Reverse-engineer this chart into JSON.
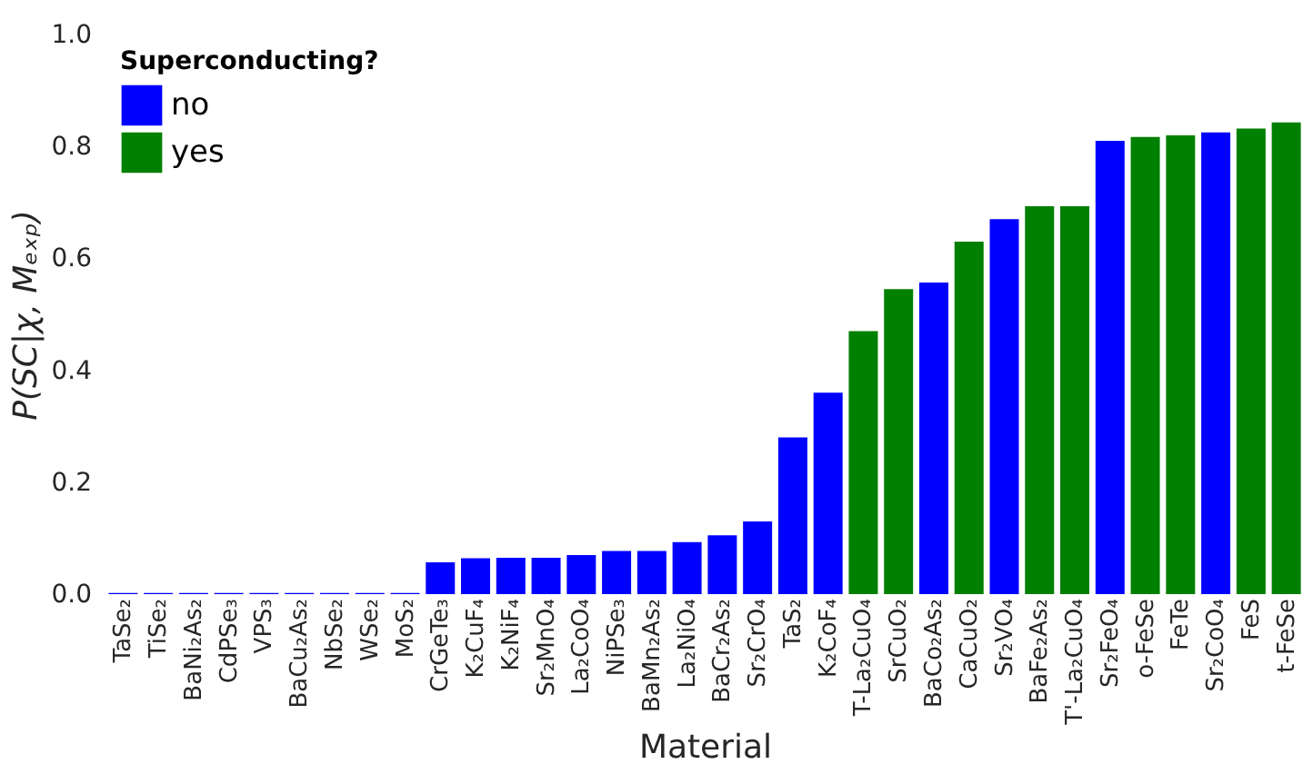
{
  "chart_data": {
    "type": "bar",
    "xlabel": "Material",
    "ylabel": "P(SC|χ, Mₑₓₚ)",
    "legend_title": "Superconducting?",
    "legend": "top left",
    "grid": false,
    "categories": [
      "TaSe₂",
      "TiSe₂",
      "BaNi₂As₂",
      "CdPSe₃",
      "VPS₃",
      "BaCu₂As₂",
      "NbSe₂",
      "WSe₂",
      "MoS₂",
      "CrGeTe₃",
      "K₂CuF₄",
      "K₂NiF₄",
      "Sr₂MnO₄",
      "La₂CoO₄",
      "NiPSe₃",
      "BaMn₂As₂",
      "La₂NiO₄",
      "BaCr₂As₂",
      "Sr₂CrO₄",
      "TaS₂",
      "K₂CoF₄",
      "T-La₂CuO₄",
      "SrCuO₂",
      "BaCo₂As₂",
      "CaCuO₂",
      "Sr₂VO₄",
      "BaFe₂As₂",
      "T'-La₂CuO₄",
      "Sr₂FeO₄",
      "o-FeSe",
      "FeTe",
      "Sr₂CoO₄",
      "FeS",
      "t-FeSe"
    ],
    "series": [
      {
        "name": "no",
        "color": "#0000ff",
        "values": [
          0.002,
          0.002,
          0.002,
          0.002,
          0.002,
          0.002,
          0.002,
          0.002,
          0.002,
          0.057,
          0.064,
          0.065,
          0.065,
          0.07,
          0.077,
          0.077,
          0.093,
          0.105,
          0.13,
          0.28,
          0.36,
          null,
          null,
          0.557,
          null,
          0.67,
          null,
          null,
          0.81,
          null,
          null,
          0.825,
          null,
          null
        ]
      },
      {
        "name": "yes",
        "color": "#008000",
        "values": [
          null,
          null,
          null,
          null,
          null,
          null,
          null,
          null,
          null,
          null,
          null,
          null,
          null,
          null,
          null,
          null,
          null,
          null,
          null,
          null,
          null,
          0.47,
          0.545,
          null,
          0.63,
          null,
          0.693,
          0.693,
          null,
          0.817,
          0.82,
          null,
          0.832,
          0.843
        ]
      }
    ],
    "ylim": [
      0,
      1.0
    ],
    "yticks": [
      {
        "value": 0,
        "label": "0.0"
      },
      {
        "value": 0.2,
        "label": "0.2"
      },
      {
        "value": 0.4,
        "label": "0.4"
      },
      {
        "value": 0.6,
        "label": "0.6"
      },
      {
        "value": 0.8,
        "label": "0.8"
      },
      {
        "value": 1.0,
        "label": "1.0"
      }
    ]
  }
}
